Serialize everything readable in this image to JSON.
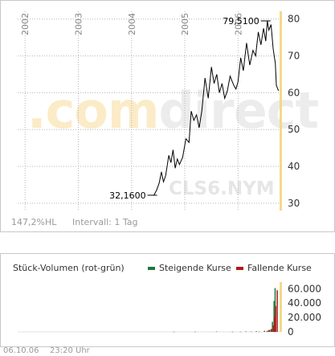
{
  "watermark": {
    "brand": ".com",
    "name": "direct",
    "ticker": "CLS6.NYM"
  },
  "info": {
    "range": "147,2%HL",
    "interval": "Intervall: 1 Tag"
  },
  "volume_panel": {
    "title": "Stück-Volumen (rot-grün)",
    "legend_rise": "Steigende Kurse",
    "legend_fall": "Fallende Kurse",
    "rise_color": "#1c7a3a",
    "fall_color": "#b01a1a"
  },
  "footer": {
    "date": "06.10.06",
    "time": "23:20 Uhr"
  },
  "colors": {
    "line": "#000000",
    "grid": "#b4b4b4",
    "year_label": "#888888",
    "axis_text": "#333333",
    "accent": "#f2d88a"
  },
  "chart_data": [
    {
      "type": "line",
      "title": "",
      "xlabel": "",
      "ylabel": "",
      "x_ticks": [
        "2002",
        "2003",
        "2004",
        "2005",
        "2006"
      ],
      "y_ticks": [
        30,
        40,
        50,
        60,
        70,
        80
      ],
      "ylim": [
        28,
        83
      ],
      "xlim": [
        2001.65,
        2006.78
      ],
      "grid": true,
      "annotations": [
        {
          "text": "32,1600",
          "x": 2004.42,
          "y": 32.16
        },
        {
          "text": "79,5100",
          "x": 2006.55,
          "y": 79.51
        }
      ],
      "series": [
        {
          "x": [
            2004.42,
            2004.47,
            2004.52,
            2004.56,
            2004.6,
            2004.64,
            2004.7,
            2004.74,
            2004.78,
            2004.82,
            2004.86,
            2004.9,
            2004.96,
            2005.02,
            2005.08,
            2005.12,
            2005.17,
            2005.22,
            2005.27,
            2005.32,
            2005.38,
            2005.44,
            2005.5,
            2005.55,
            2005.6,
            2005.65,
            2005.7,
            2005.75,
            2005.8,
            2005.85,
            2005.92,
            2005.96,
            2006.0,
            2006.05,
            2006.1,
            2006.16,
            2006.22,
            2006.28,
            2006.33,
            2006.38,
            2006.43,
            2006.48,
            2006.52,
            2006.55,
            2006.58,
            2006.62,
            2006.66,
            2006.7,
            2006.72,
            2006.76
          ],
          "y": [
            32.2,
            33.5,
            35.5,
            38.5,
            35.8,
            37.5,
            43.0,
            41.0,
            44.5,
            39.5,
            42.0,
            40.5,
            42.5,
            47.5,
            46.5,
            55.0,
            52.5,
            54.0,
            50.5,
            55.0,
            64.0,
            58.5,
            67.0,
            62.5,
            65.0,
            60.0,
            62.5,
            58.5,
            60.5,
            64.5,
            62.0,
            61.0,
            63.0,
            69.5,
            66.0,
            73.5,
            67.5,
            71.5,
            70.0,
            76.5,
            73.0,
            77.5,
            74.0,
            79.5,
            77.0,
            78.5,
            72.0,
            68.0,
            62.0,
            60.5
          ]
        }
      ]
    },
    {
      "type": "bar",
      "title": "",
      "xlabel": "",
      "ylabel": "",
      "y_ticks": [
        "0",
        "20.000",
        "40.000",
        "60.000"
      ],
      "ylim": [
        0,
        66000
      ],
      "xlim": [
        2001.65,
        2006.78
      ],
      "grid": false,
      "series": [
        {
          "name": "Steigende Kurse",
          "x": [
            2006.05,
            2006.25,
            2006.4,
            2006.55,
            2006.6,
            2006.65,
            2006.68,
            2006.7
          ],
          "values": [
            300,
            500,
            400,
            1500,
            3000,
            14000,
            43000,
            61000
          ]
        },
        {
          "name": "Fallende Kurse",
          "x": [
            2004.8,
            2005.2,
            2005.6,
            2005.9,
            2006.15,
            2006.35,
            2006.5,
            2006.58,
            2006.63,
            2006.67,
            2006.69,
            2006.71,
            2006.74
          ],
          "values": [
            300,
            400,
            500,
            300,
            600,
            800,
            1500,
            2500,
            4000,
            9000,
            21000,
            36000,
            58000
          ]
        }
      ]
    }
  ]
}
